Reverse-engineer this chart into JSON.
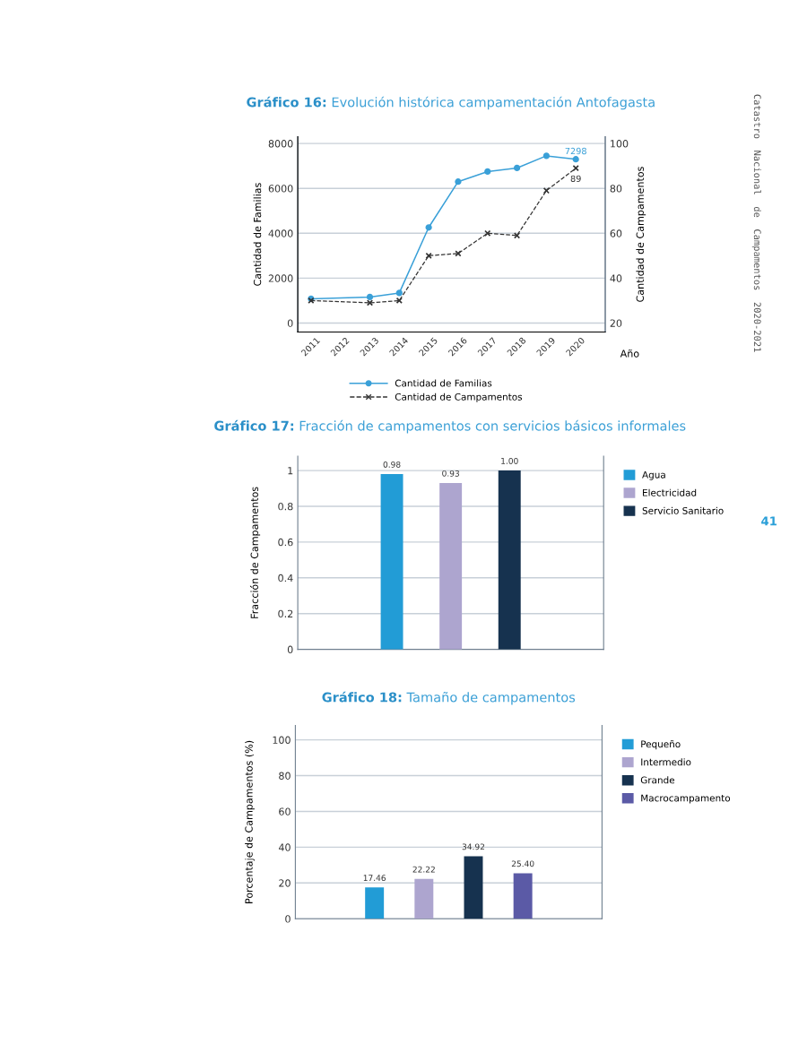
{
  "chart_data": [
    {
      "type": "line",
      "title": "Gráfico 16: Evolución histórica campamentación Antofagasta",
      "xlabel": "Año",
      "ylabel": "Cantidad de Familias",
      "y2label": "Cantidad de Campamentos",
      "series": [
        {
          "name": "Cantidad de Familias",
          "color": "#3aa0d8",
          "marker": "circle",
          "line_style": "solid",
          "x": [
            2011,
            2013,
            2014,
            2015,
            2016,
            2017,
            2018,
            2019,
            2020
          ],
          "values": [
            1080,
            1160,
            1340,
            4260,
            6300,
            6750,
            6910,
            7450,
            7298
          ],
          "value_labels": [
            null,
            null,
            null,
            null,
            null,
            null,
            null,
            null,
            "7298"
          ]
        },
        {
          "name": "Cantidad de Campamentos",
          "color": "#333333",
          "marker": "cross",
          "line_style": "dashed",
          "axis": "y2",
          "x": [
            2011,
            2013,
            2014,
            2015,
            2016,
            2017,
            2018,
            2019,
            2020
          ],
          "values": [
            30,
            29,
            30,
            50,
            51,
            60,
            59,
            79,
            89
          ],
          "value_labels": [
            null,
            null,
            null,
            null,
            null,
            null,
            null,
            null,
            "89"
          ]
        }
      ],
      "xlim": [
        2010.55,
        2021.0
      ],
      "xticks": [
        2011,
        2012,
        2013,
        2014,
        2015,
        2016,
        2017,
        2018,
        2019,
        2020
      ],
      "ylim": [
        -400,
        8300
      ],
      "yticks": [
        0,
        2000,
        4000,
        6000,
        8000
      ],
      "y2lim": [
        16,
        103
      ],
      "y2ticks": [
        20,
        40,
        60,
        80,
        100
      ],
      "grid": "y",
      "legend": "bottom",
      "annotations": [
        "Catastro Nacional de Campamentos 2020-2021",
        "41"
      ]
    },
    {
      "type": "bar",
      "title": "Gráfico 17: Fracción de campamentos con servicios básicos informales",
      "ylabel": "Fracción de Campamentos",
      "categories": [
        null,
        null,
        null
      ],
      "series": [
        {
          "name": "Agua",
          "color": "#229cd6",
          "values": [
            0.98,
            null,
            null
          ],
          "value_labels": [
            "0.98",
            null,
            null
          ]
        },
        {
          "name": "Electricidad",
          "color": "#ada5cf",
          "values": [
            null,
            0.93,
            null
          ],
          "value_labels": [
            null,
            "0.93",
            null
          ]
        },
        {
          "name": "Servicio Sanitario",
          "color": "#16324f",
          "values": [
            null,
            null,
            1.0
          ],
          "value_labels": [
            null,
            null,
            "1.00"
          ]
        }
      ],
      "ylim": [
        0,
        1.08
      ],
      "yticks": [
        0,
        0.2,
        0.4,
        0.6,
        0.8,
        1
      ],
      "grid": "y",
      "legend": "right",
      "stacked": true
    },
    {
      "type": "bar",
      "title": "Gráfico 18: Tamaño de campamentos",
      "ylabel": "Porcentaje de Campamentos (%)",
      "categories": [
        null,
        null,
        null,
        null
      ],
      "series": [
        {
          "name": "Pequeño",
          "color": "#229cd6",
          "values": [
            17.46,
            null,
            null,
            null
          ],
          "value_labels": [
            "17.46",
            null,
            null,
            null
          ]
        },
        {
          "name": "Intermedio",
          "color": "#ada5cf",
          "values": [
            null,
            22.22,
            null,
            null
          ],
          "value_labels": [
            null,
            "22.22",
            null,
            null
          ]
        },
        {
          "name": "Grande",
          "color": "#16324f",
          "values": [
            null,
            null,
            34.92,
            null
          ],
          "value_labels": [
            null,
            null,
            "34.92",
            null
          ]
        },
        {
          "name": "Macrocampamento",
          "color": "#5b5aa6",
          "values": [
            null,
            null,
            null,
            25.4
          ],
          "value_labels": [
            null,
            null,
            null,
            "25.40"
          ]
        }
      ],
      "ylim": [
        0,
        108
      ],
      "yticks": [
        0,
        20,
        40,
        60,
        80,
        100
      ],
      "grid": "y",
      "legend": "right",
      "stacked": true
    }
  ]
}
